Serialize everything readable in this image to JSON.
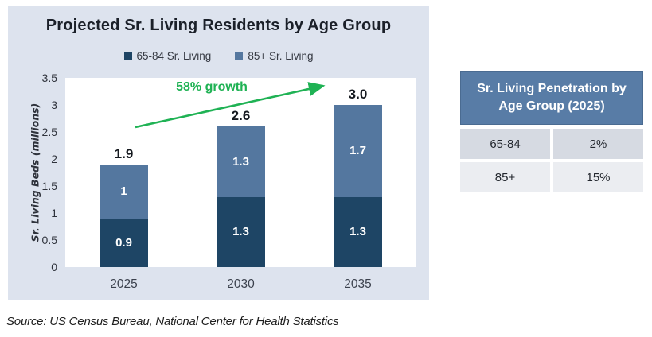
{
  "page": {
    "source_note": "Source: US Census Bureau, National Center for Health Statistics"
  },
  "chart_panel": {
    "title": "Projected Sr. Living Residents by Age Group",
    "panel_bg": "#DDE3EE"
  },
  "chart_data": {
    "type": "bar",
    "stacked": true,
    "title": "Projected Sr. Living Residents by Age Group",
    "categories": [
      "2025",
      "2030",
      "2035"
    ],
    "series": [
      {
        "name": "65-84 Sr. Living",
        "color": "#1E4565",
        "values": [
          0.9,
          1.3,
          1.3
        ],
        "labels": [
          "0.9",
          "1.3",
          "1.3"
        ]
      },
      {
        "name": "85+ Sr. Living",
        "color": "#54779F",
        "values": [
          1.0,
          1.3,
          1.7
        ],
        "labels": [
          "1",
          "1.3",
          "1.7"
        ]
      }
    ],
    "totals": [
      "1.9",
      "2.6",
      "3.0"
    ],
    "xlabel": "",
    "ylabel": "Sr. Living Beds (millions)",
    "ylim": [
      0,
      3.5
    ],
    "yticks": [
      0,
      0.5,
      1,
      1.5,
      2,
      2.5,
      3,
      3.5
    ],
    "ytick_labels": [
      "0",
      "0.5",
      "1",
      "1.5",
      "2",
      "2.5",
      "3",
      "3.5"
    ],
    "grid": false,
    "legend_position": "top-center",
    "annotation": {
      "text": "58% growth",
      "color": "#1FB254"
    }
  },
  "table": {
    "title": "Sr. Living Penetration by Age Group (2025)",
    "header_bg": "#587CA6",
    "header_text_color": "#FFFFFF",
    "row_colors": [
      "#D6DAE2",
      "#EBEDF1"
    ],
    "rows": [
      {
        "group": "65-84",
        "value": "2%"
      },
      {
        "group": "85+",
        "value": "15%"
      }
    ]
  }
}
